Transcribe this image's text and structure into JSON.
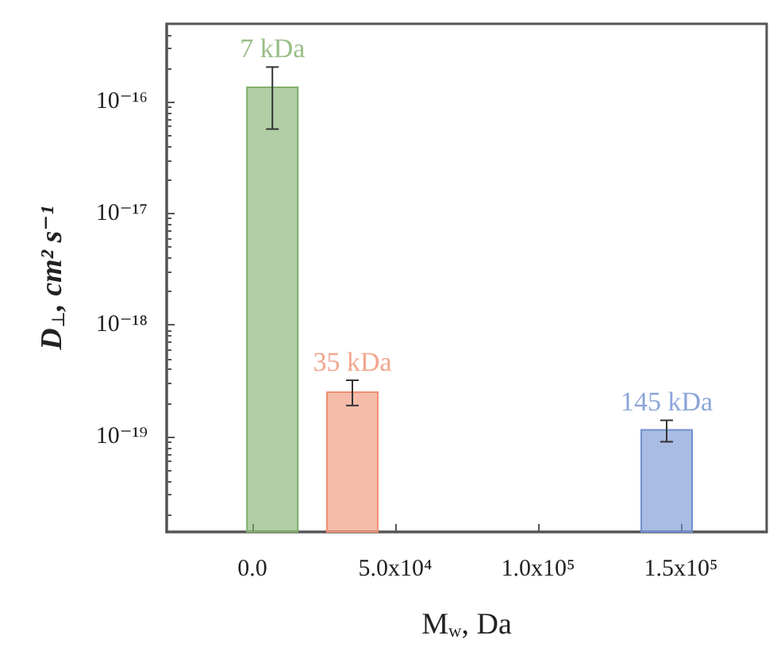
{
  "chart_data": {
    "type": "bar",
    "x": [
      7000,
      35000,
      145000
    ],
    "values": [
      1.35e-16,
      2.5e-19,
      1.15e-19
    ],
    "errors": [
      [
        5.7e-17,
        2.05e-16
      ],
      [
        1.9e-19,
        3.2e-19
      ],
      [
        9e-20,
        1.4e-19
      ]
    ],
    "colors": [
      "#7fae6a",
      "#ef8f72",
      "#6f8fd0"
    ],
    "annotations": [
      "7 kDa",
      "35 kDa",
      "145 kDa"
    ],
    "xlabel": "M$_{w}$, Da",
    "ylabel": "D$_{⊥}$, cm² s⁻¹",
    "log": "y",
    "xlim": [
      -30000,
      180000
    ],
    "xticks": [
      {
        "value": 0,
        "label": "0.0"
      },
      {
        "value": 50000,
        "label": "5.0x10⁴"
      },
      {
        "value": 100000,
        "label": "1.0x10⁵"
      },
      {
        "value": 150000,
        "label": "1.5x10⁵"
      }
    ],
    "ylim": [
      1.4e-20,
      5e-16
    ],
    "yticks": [
      {
        "value": 1e-19,
        "label": "10⁻¹⁹"
      },
      {
        "value": 1e-18,
        "label": "10⁻¹⁸"
      },
      {
        "value": 1e-17,
        "label": "10⁻¹⁷"
      },
      {
        "value": 1e-16,
        "label": "10⁻¹⁶"
      }
    ],
    "grid": false
  }
}
